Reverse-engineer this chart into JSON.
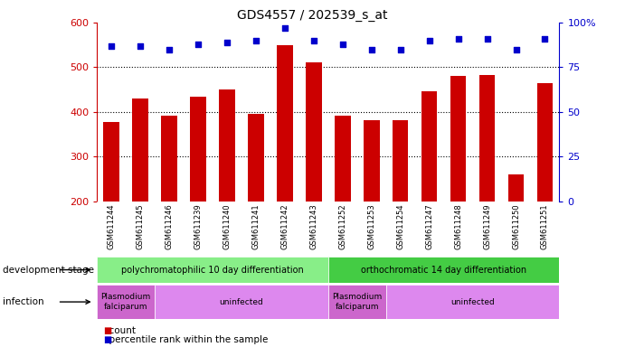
{
  "title": "GDS4557 / 202539_s_at",
  "samples": [
    "GSM611244",
    "GSM611245",
    "GSM611246",
    "GSM611239",
    "GSM611240",
    "GSM611241",
    "GSM611242",
    "GSM611243",
    "GSM611252",
    "GSM611253",
    "GSM611254",
    "GSM611247",
    "GSM611248",
    "GSM611249",
    "GSM611250",
    "GSM611251"
  ],
  "counts": [
    378,
    430,
    392,
    435,
    450,
    395,
    550,
    510,
    392,
    382,
    382,
    447,
    480,
    482,
    260,
    465
  ],
  "percentile_ranks": [
    87,
    87,
    85,
    88,
    89,
    90,
    97,
    90,
    88,
    85,
    85,
    90,
    91,
    91,
    85,
    91
  ],
  "ylim_left": [
    200,
    600
  ],
  "ylim_right": [
    0,
    100
  ],
  "yticks_left": [
    200,
    300,
    400,
    500,
    600
  ],
  "yticks_right": [
    0,
    25,
    50,
    75,
    100
  ],
  "bar_color": "#cc0000",
  "dot_color": "#0000cc",
  "bar_bottom": 200,
  "development_stage_labels": [
    "polychromatophilic 10 day differentiation",
    "orthochromatic 14 day differentiation"
  ],
  "development_stage_split": 8,
  "development_stage_color1": "#88ee88",
  "development_stage_color2": "#44cc44",
  "infection_labels": [
    "Plasmodium\nfalciparum",
    "uninfected",
    "Plasmodium\nfalciparum",
    "uninfected"
  ],
  "infection_ranges": [
    [
      0,
      2
    ],
    [
      2,
      8
    ],
    [
      8,
      10
    ],
    [
      10,
      16
    ]
  ],
  "infection_color_odd": "#dd88ee",
  "infection_color_even": "#cc66cc",
  "row_label_dev": "development stage",
  "row_label_inf": "infection",
  "legend_count": "count",
  "legend_pct": "percentile rank within the sample",
  "title_fontsize": 10,
  "axis_color_left": "#cc0000",
  "axis_color_right": "#0000cc",
  "grid_dotted_color": "black",
  "xticklabel_bg": "#dddddd",
  "n_samples": 16
}
